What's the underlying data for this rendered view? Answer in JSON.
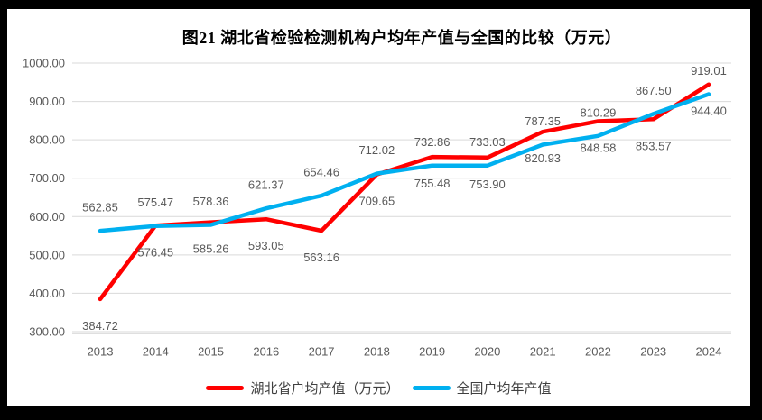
{
  "frame": {
    "background": "#000000",
    "canvas_background": "#ffffff"
  },
  "styles": {
    "grid_color": "#D9D9D9",
    "axis_line_color": "#BFBFBF",
    "tick_label_color": "#595959",
    "data_label_color": "#595959",
    "title_color": "#000000",
    "legend_text_color": "#404040",
    "hubei_red": "#FF0000",
    "national_blue": "#00B0F0"
  },
  "chart_data": {
    "type": "line",
    "title": "图21  湖北省检验检测机构户均年产值与全国的比较（万元）",
    "categories": [
      "2013",
      "2014",
      "2015",
      "2016",
      "2017",
      "2018",
      "2019",
      "2020",
      "2021",
      "2022",
      "2023",
      "2024"
    ],
    "series": [
      {
        "id": "hubei",
        "name": "湖北省户均产值（万元）",
        "color": "#FF0000",
        "label_position": "below",
        "values": [
          384.72,
          576.45,
          585.26,
          593.05,
          563.16,
          709.65,
          755.48,
          753.9,
          820.93,
          848.58,
          853.57,
          944.4
        ]
      },
      {
        "id": "national",
        "name": "全国户均年产值",
        "color": "#00B0F0",
        "label_position": "above",
        "values": [
          562.85,
          575.47,
          578.36,
          621.37,
          654.46,
          712.02,
          732.86,
          733.03,
          787.35,
          810.29,
          867.5,
          919.01
        ]
      }
    ],
    "ylim": [
      300,
      1000
    ],
    "ytick_step": 100,
    "ytick_decimals": 2,
    "grid": true,
    "data_labels": true,
    "legend_position": "bottom",
    "xlabel": "",
    "ylabel": ""
  }
}
